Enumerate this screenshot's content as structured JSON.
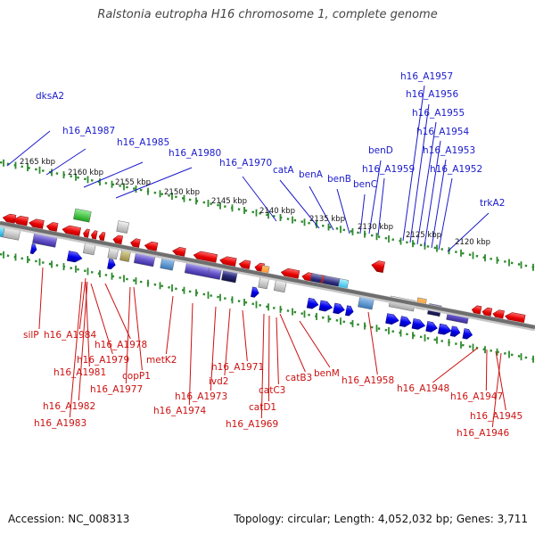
{
  "title": "Ralstonia eutropha H16 chromosome 1, complete genome",
  "footer": {
    "accession": "Accession: NC_008313",
    "summary": "Topology: circular; Length: 4,052,032 bp; Genes: 3,711"
  },
  "colors": {
    "backbone": "#777777",
    "ruler_dots": "#2e8b2e",
    "forward_gene": "#1a1aee",
    "reverse_gene": "#ee1a1a",
    "forward_label": "#1a1acc",
    "reverse_label": "#cc1111",
    "tick_label": "#111111"
  },
  "ticks": [
    "2165 kbp",
    "2160 kbp",
    "2155 kbp",
    "2150 kbp",
    "2145 kbp",
    "2140 kbp",
    "2135 kbp",
    "2130 kbp",
    "2125 kbp",
    "2120 kbp"
  ],
  "upper_labels": [
    "dksA2",
    "h16_A1987",
    "h16_A1985",
    "h16_A1980",
    "h16_A1970",
    "catA",
    "benA",
    "benB",
    "benC",
    "benD",
    "h16_A1959",
    "h16_A1957",
    "h16_A1956",
    "h16_A1955",
    "h16_A1954",
    "h16_A1953",
    "h16_A1952",
    "trkA2"
  ],
  "lower_labels": [
    "silP",
    "h16_A1984",
    "h16_A1978",
    "h16_A1979",
    "h16_A1981",
    "h16_A1977",
    "copP1",
    "h16_A1982",
    "h16_A1983",
    "metK2",
    "h16_A1974",
    "h16_A1973",
    "h16_A1971",
    "ivd2",
    "catB3",
    "catC3",
    "catD1",
    "h16_A1969",
    "benM",
    "h16_A1958",
    "h16_A1948",
    "h16_A1947",
    "h16_A1945",
    "h16_A1946"
  ]
}
